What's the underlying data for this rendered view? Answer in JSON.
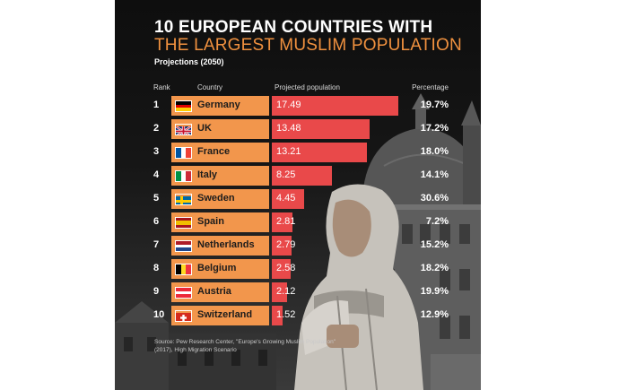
{
  "chart_data": {
    "type": "bar",
    "orientation": "horizontal",
    "title": "10 EUROPEAN COUNTRIES WITH",
    "title_highlight": "THE LARGEST MUSLIM POPULATION",
    "subtitle": "Projections (2050)",
    "columns": {
      "rank": "Rank",
      "country": "Country",
      "value": "Projected population",
      "percentage": "Percentage"
    },
    "rows": [
      {
        "rank": "1",
        "country": "Germany",
        "flag": "germany",
        "value": 17.49,
        "value_label": "17.49",
        "percentage": "19.7%"
      },
      {
        "rank": "2",
        "country": "UK",
        "flag": "uk",
        "value": 13.48,
        "value_label": "13.48",
        "percentage": "17.2%"
      },
      {
        "rank": "3",
        "country": "France",
        "flag": "france",
        "value": 13.21,
        "value_label": "13.21",
        "percentage": "18.0%"
      },
      {
        "rank": "4",
        "country": "Italy",
        "flag": "italy",
        "value": 8.25,
        "value_label": "8.25",
        "percentage": "14.1%"
      },
      {
        "rank": "5",
        "country": "Sweden",
        "flag": "sweden",
        "value": 4.45,
        "value_label": "4.45",
        "percentage": "30.6%"
      },
      {
        "rank": "6",
        "country": "Spain",
        "flag": "spain",
        "value": 2.81,
        "value_label": "2.81",
        "percentage": "7.2%"
      },
      {
        "rank": "7",
        "country": "Netherlands",
        "flag": "netherlands",
        "value": 2.79,
        "value_label": "2.79",
        "percentage": "15.2%"
      },
      {
        "rank": "8",
        "country": "Belgium",
        "flag": "belgium",
        "value": 2.58,
        "value_label": "2.58",
        "percentage": "18.2%"
      },
      {
        "rank": "9",
        "country": "Austria",
        "flag": "austria",
        "value": 2.12,
        "value_label": "2.12",
        "percentage": "19.9%"
      },
      {
        "rank": "10",
        "country": "Switzerland",
        "flag": "switzerland",
        "value": 1.52,
        "value_label": "1.52",
        "percentage": "12.9%"
      }
    ],
    "source": "Source: Pew Research Center, \"Europe's Growing Muslim Population\" (2017), High Migration Scenario",
    "colors": {
      "background": "#141414",
      "title": "#ffffff",
      "title_highlight": "#f0913f",
      "country_bar": "#f2964c",
      "value_bar": "#e9494a"
    }
  }
}
